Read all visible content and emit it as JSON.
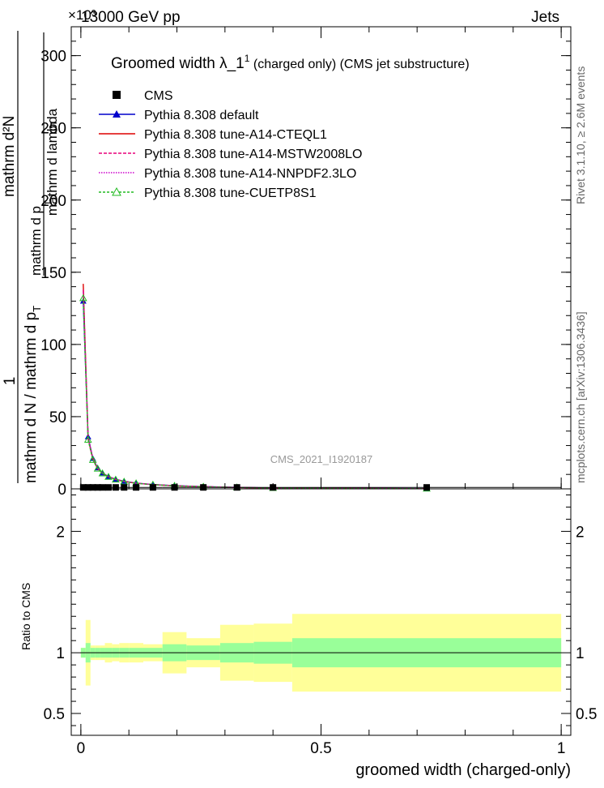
{
  "header": {
    "left": "13000 GeV pp",
    "right": "Jets",
    "exponent": "×10³"
  },
  "side": {
    "rivet": "Rivet 3.1.10, ≥ 2.6M events",
    "mcplots": "mcplots.cern.ch [arXiv:1306.3436]"
  },
  "plot_title": {
    "main": "Groomed width  λ_1",
    "sup": "1",
    "rest": " (charged only) (CMS jet substructure)"
  },
  "watermark": "CMS_2021_I1920187",
  "axes": {
    "ylabel_one": "1",
    "ylabel_den": "mathrm d N / mathrm d p",
    "ylabel_den_sub": "T",
    "ylabel_num": "mathrm d²N",
    "ylabel_num2": "mathrm d p",
    "ylabel_num2_sub": "T",
    "ylabel_num3": "mathrm d lambda",
    "ratio_ylabel": "Ratio to CMS",
    "xlabel": "groomed width (charged-only)"
  },
  "legend": [
    {
      "label": "CMS",
      "color": "#000000",
      "style": "square"
    },
    {
      "label": "Pythia 8.308 default",
      "color": "#0000cc",
      "style": "triangle"
    },
    {
      "label": "Pythia 8.308 tune-A14-CTEQL1",
      "color": "#dd0000",
      "style": "solid"
    },
    {
      "label": "Pythia 8.308 tune-A14-MSTW2008LO",
      "color": "#e8007a",
      "style": "dashed"
    },
    {
      "label": "Pythia 8.308 tune-A14-NNPDF2.3LO",
      "color": "#cc00cc",
      "style": "dotted"
    },
    {
      "label": "Pythia 8.308 tune-CUETP8S1",
      "color": "#22bb22",
      "style": "open-triangle"
    }
  ],
  "chart_data": {
    "type": "line",
    "main": {
      "x_range": [
        -0.02,
        1.02
      ],
      "y_range": [
        0,
        320
      ],
      "y_ticks": [
        {
          "v": 0,
          "label": "0"
        },
        {
          "v": 50,
          "label": "50"
        },
        {
          "v": 100,
          "label": "100"
        },
        {
          "v": 150,
          "label": "150"
        },
        {
          "v": 200,
          "label": "200"
        },
        {
          "v": 250,
          "label": "250"
        },
        {
          "v": 300,
          "label": "300"
        }
      ],
      "y_unit_scale": "×10³",
      "cms_bins": [
        {
          "lo": 0.0,
          "hi": 0.01,
          "y": 1.0
        },
        {
          "lo": 0.01,
          "hi": 0.02,
          "y": 1.0
        },
        {
          "lo": 0.02,
          "hi": 0.03,
          "y": 1.0
        },
        {
          "lo": 0.03,
          "hi": 0.04,
          "y": 1.0
        },
        {
          "lo": 0.04,
          "hi": 0.05,
          "y": 1.0
        },
        {
          "lo": 0.05,
          "hi": 0.065,
          "y": 1.0
        },
        {
          "lo": 0.065,
          "hi": 0.08,
          "y": 1.0
        },
        {
          "lo": 0.08,
          "hi": 0.1,
          "y": 1.0
        },
        {
          "lo": 0.1,
          "hi": 0.13,
          "y": 1.0
        },
        {
          "lo": 0.13,
          "hi": 0.17,
          "y": 1.0
        },
        {
          "lo": 0.17,
          "hi": 0.22,
          "y": 1.0
        },
        {
          "lo": 0.22,
          "hi": 0.29,
          "y": 1.0
        },
        {
          "lo": 0.29,
          "hi": 0.36,
          "y": 1.0
        },
        {
          "lo": 0.36,
          "hi": 0.44,
          "y": 1.0
        },
        {
          "lo": 0.44,
          "hi": 1.0,
          "y": 1.0
        }
      ],
      "series": [
        {
          "name": "Pythia 8.308 default",
          "x": [
            0.005,
            0.015,
            0.025,
            0.035,
            0.045,
            0.0575,
            0.0725,
            0.09,
            0.115,
            0.15,
            0.195,
            0.255,
            0.325,
            0.4,
            0.72
          ],
          "y": [
            130,
            36,
            21,
            14.5,
            11,
            8.5,
            6.6,
            5.2,
            4.0,
            3.0,
            2.2,
            1.5,
            1.0,
            0.6,
            0.15
          ]
        },
        {
          "name": "Pythia 8.308 tune-A14-CTEQL1",
          "x": [
            0.005,
            0.015,
            0.025,
            0.035,
            0.045,
            0.0575,
            0.0725,
            0.09,
            0.115,
            0.15,
            0.195,
            0.255,
            0.325,
            0.4,
            0.72
          ],
          "y": [
            142,
            35,
            20.5,
            14,
            10.8,
            8.4,
            6.5,
            5.1,
            3.9,
            2.9,
            2.1,
            1.45,
            0.95,
            0.55,
            0.12
          ]
        },
        {
          "name": "Pythia 8.308 tune-A14-MSTW2008LO",
          "x": [
            0.005,
            0.015,
            0.025,
            0.035,
            0.045,
            0.0575,
            0.0725,
            0.09,
            0.115,
            0.15,
            0.195,
            0.255,
            0.325,
            0.4,
            0.72
          ],
          "y": [
            138,
            35.5,
            20.8,
            14.2,
            10.9,
            8.45,
            6.55,
            5.15,
            3.95,
            2.95,
            2.15,
            1.5,
            0.98,
            0.58,
            0.13
          ]
        },
        {
          "name": "Pythia 8.308 tune-A14-NNPDF2.3LO",
          "x": [
            0.005,
            0.015,
            0.025,
            0.035,
            0.045,
            0.0575,
            0.0725,
            0.09,
            0.115,
            0.15,
            0.195,
            0.255,
            0.325,
            0.4,
            0.72
          ],
          "y": [
            136,
            35.8,
            21,
            14.3,
            11,
            8.5,
            6.6,
            5.2,
            4.0,
            3.0,
            2.2,
            1.5,
            1.0,
            0.6,
            0.14
          ]
        },
        {
          "name": "Pythia 8.308 tune-CUETP8S1",
          "x": [
            0.005,
            0.015,
            0.025,
            0.035,
            0.045,
            0.0575,
            0.0725,
            0.09,
            0.115,
            0.15,
            0.195,
            0.255,
            0.325,
            0.4,
            0.72
          ],
          "y": [
            132,
            34,
            20,
            14,
            10.7,
            8.3,
            6.4,
            5.0,
            3.85,
            2.9,
            2.1,
            1.45,
            0.95,
            0.55,
            0.12
          ]
        }
      ]
    },
    "ratio": {
      "y_range": [
        0.32,
        2.35
      ],
      "y_ticks": [
        {
          "v": 0.5,
          "label": "0.5"
        },
        {
          "v": 1,
          "label": "1"
        },
        {
          "v": 2,
          "label": "2"
        }
      ],
      "x_ticks": [
        {
          "v": 0,
          "label": "0"
        },
        {
          "v": 0.5,
          "label": "0.5"
        },
        {
          "v": 1,
          "label": "1"
        }
      ],
      "bands": [
        {
          "lo": 0.0,
          "hi": 0.01,
          "stat": 0.04,
          "tot": 0.04
        },
        {
          "lo": 0.01,
          "hi": 0.02,
          "stat": 0.08,
          "tot": 0.27
        },
        {
          "lo": 0.02,
          "hi": 0.03,
          "stat": 0.04,
          "tot": 0.06
        },
        {
          "lo": 0.03,
          "hi": 0.04,
          "stat": 0.04,
          "tot": 0.06
        },
        {
          "lo": 0.04,
          "hi": 0.05,
          "stat": 0.04,
          "tot": 0.06
        },
        {
          "lo": 0.05,
          "hi": 0.065,
          "stat": 0.04,
          "tot": 0.08
        },
        {
          "lo": 0.065,
          "hi": 0.08,
          "stat": 0.04,
          "tot": 0.07
        },
        {
          "lo": 0.08,
          "hi": 0.1,
          "stat": 0.04,
          "tot": 0.08
        },
        {
          "lo": 0.1,
          "hi": 0.13,
          "stat": 0.04,
          "tot": 0.08
        },
        {
          "lo": 0.13,
          "hi": 0.17,
          "stat": 0.04,
          "tot": 0.07
        },
        {
          "lo": 0.17,
          "hi": 0.22,
          "stat": 0.07,
          "tot": 0.17
        },
        {
          "lo": 0.22,
          "hi": 0.29,
          "stat": 0.06,
          "tot": 0.12
        },
        {
          "lo": 0.29,
          "hi": 0.36,
          "stat": 0.08,
          "tot": 0.23
        },
        {
          "lo": 0.36,
          "hi": 0.44,
          "stat": 0.09,
          "tot": 0.24
        },
        {
          "lo": 0.44,
          "hi": 1.0,
          "stat": 0.12,
          "tot": 0.32
        }
      ],
      "reference": 1.0
    }
  }
}
